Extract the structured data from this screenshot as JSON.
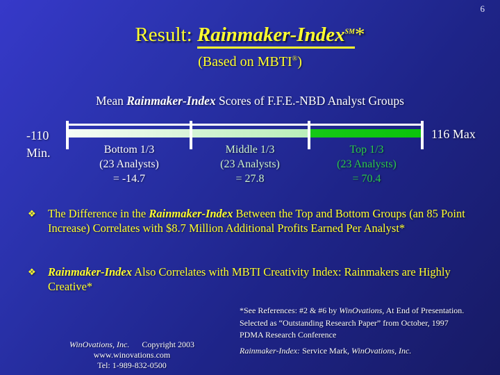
{
  "page_number": "6",
  "title": {
    "pre": "Result: ",
    "em": "Rainmaker-Index",
    "sup": "SM",
    "suffix": "*"
  },
  "subtitle": {
    "pre": "(Based on MBTI",
    "sup": "®",
    "post": ")"
  },
  "heading": {
    "pre": "Mean ",
    "em": "Rainmaker-Index",
    "post": " Scores of F.F.E.-NBD Analyst Groups"
  },
  "scale": {
    "min_label_value": "-110",
    "min_label_word": "Min.",
    "max_label": "116 Max",
    "min_value": -110,
    "max_value": 116,
    "groups": [
      {
        "name": "Bottom 1/3",
        "count": "(23 Analysts)",
        "score": "= -14.7",
        "mean": -14.7,
        "color": "#FFFFFF"
      },
      {
        "name": "Middle 1/3",
        "count": "(23 Analysts)",
        "score": "= 27.8",
        "mean": 27.8,
        "color": "#CDF3CD"
      },
      {
        "name": "Top 1/3",
        "count": "(23 Analysts)",
        "score": "= 70.4",
        "mean": 70.4,
        "color": "#2BC94B"
      }
    ]
  },
  "bullets": [
    {
      "marker": "❖",
      "pre": "The Difference in the ",
      "em": "Rainmaker-Index",
      "post": " Between the Top and Bottom Groups (an 85 Point Increase) Correlates with $8.7 Million Additional Profits Earned Per Analyst*"
    },
    {
      "marker": "❖",
      "pre": "",
      "em": "Rainmaker-Index",
      "post": " Also Correlates with MBTI Creativity Index: Rainmakers are Highly Creative*"
    }
  ],
  "footnotes": {
    "references": {
      "pre": "*See References: #2 & #6 by ",
      "it": "WinOvations",
      "post": ", At End of Presentation. Selected  as “Outstanding Research Paper” from October, 1997 PDMA Research Conference"
    },
    "service_mark": {
      "it1": "Rainmaker-Index:",
      "mid": "  Service Mark, ",
      "it2": "WinOvations, Inc."
    }
  },
  "footer": {
    "company": "WinOvations, Inc.",
    "copyright": "Copyright 2003",
    "website": "www.winovations.com",
    "phone": "Tel:  1-989-832-0500"
  },
  "colors": {
    "background_top_left": "#3639C9",
    "background_bottom_right": "#171A64",
    "accent_yellow": "#FFFF2E",
    "white_text": "#FFFFFF",
    "pale_green": "#CDF3CD",
    "bright_green": "#2BC94B",
    "bar_bottom_segment": "#E8F9E8",
    "bar_middle_segment": "#C4F1C4",
    "bar_top_segment": "#12C612"
  }
}
